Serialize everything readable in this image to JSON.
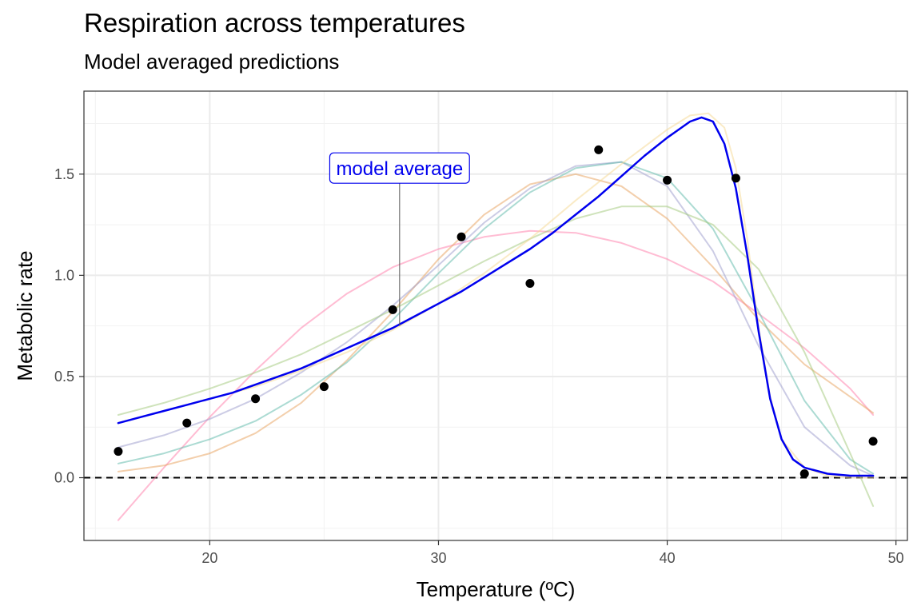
{
  "chart_data": {
    "type": "line",
    "title": "Respiration across temperatures",
    "subtitle": "Model averaged predictions",
    "xlabel": "Temperature (ºC)",
    "ylabel": "Metabolic rate",
    "xlim": [
      14.5,
      50.5
    ],
    "ylim": [
      -0.31,
      1.91
    ],
    "x_ticks": [
      20,
      30,
      40,
      50
    ],
    "y_ticks": [
      0.0,
      0.5,
      1.0,
      1.5
    ],
    "x_tick_labels": [
      "20",
      "30",
      "40",
      "50"
    ],
    "y_tick_labels": [
      "0.0",
      "0.5",
      "1.0",
      "1.5"
    ],
    "grid": true,
    "reference_line": {
      "y": 0,
      "style": "dashed",
      "color": "#000000"
    },
    "annotation": {
      "text": "model average",
      "x": 28.3,
      "y": 0.75,
      "label_y": 1.53,
      "color": "#0000ee"
    },
    "points": {
      "color": "#000000",
      "x": [
        16,
        19,
        22,
        25,
        28,
        31,
        34,
        37,
        40,
        43,
        46,
        49
      ],
      "y": [
        0.13,
        0.27,
        0.39,
        0.45,
        0.83,
        1.19,
        0.96,
        1.62,
        1.47,
        1.48,
        0.02,
        0.18
      ]
    },
    "series": [
      {
        "color": "#ff7aa8",
        "x": [
          16,
          18,
          20,
          22,
          24,
          26,
          28,
          30,
          32,
          34,
          36,
          38,
          40,
          42,
          44,
          46,
          48,
          49
        ],
        "y": [
          -0.21,
          0.05,
          0.3,
          0.53,
          0.74,
          0.91,
          1.04,
          1.13,
          1.19,
          1.22,
          1.21,
          1.16,
          1.08,
          0.97,
          0.81,
          0.64,
          0.44,
          0.31
        ]
      },
      {
        "color": "#e8a05a",
        "x": [
          16,
          18,
          20,
          22,
          24,
          26,
          28,
          30,
          32,
          34,
          36,
          38,
          40,
          42,
          44,
          46,
          48,
          49
        ],
        "y": [
          0.03,
          0.06,
          0.12,
          0.22,
          0.37,
          0.58,
          0.82,
          1.08,
          1.3,
          1.45,
          1.5,
          1.44,
          1.28,
          1.04,
          0.78,
          0.56,
          0.4,
          0.32
        ]
      },
      {
        "color": "#9999cc",
        "x": [
          16,
          18,
          20,
          22,
          24,
          26,
          28,
          30,
          32,
          34,
          36,
          38,
          40,
          42,
          44,
          46,
          48,
          49
        ],
        "y": [
          0.15,
          0.21,
          0.29,
          0.39,
          0.52,
          0.67,
          0.85,
          1.05,
          1.26,
          1.43,
          1.54,
          1.56,
          1.44,
          1.12,
          0.65,
          0.25,
          0.06,
          0.01
        ]
      },
      {
        "color": "#5ab8a8",
        "x": [
          16,
          18,
          20,
          22,
          24,
          26,
          28,
          30,
          32,
          34,
          36,
          38,
          40,
          42,
          44,
          46,
          48,
          49
        ],
        "y": [
          0.07,
          0.12,
          0.19,
          0.28,
          0.41,
          0.57,
          0.78,
          1.01,
          1.23,
          1.41,
          1.53,
          1.56,
          1.48,
          1.23,
          0.82,
          0.38,
          0.09,
          0.02
        ]
      },
      {
        "color": "#a0c878",
        "x": [
          16,
          18,
          20,
          22,
          24,
          26,
          28,
          30,
          32,
          34,
          36,
          38,
          40,
          42,
          44,
          46,
          48,
          49
        ],
        "y": [
          0.31,
          0.37,
          0.44,
          0.52,
          0.61,
          0.72,
          0.83,
          0.95,
          1.07,
          1.18,
          1.28,
          1.34,
          1.34,
          1.25,
          1.03,
          0.62,
          0.12,
          -0.14
        ]
      },
      {
        "color": "#f5d890",
        "x": [
          16,
          18,
          20,
          22,
          24,
          26,
          28,
          30,
          32,
          34,
          36,
          38,
          40,
          41,
          41.8,
          42.5,
          43,
          43.5,
          44,
          44.5,
          45,
          46,
          47,
          48,
          49
        ],
        "y": [
          0.27,
          0.33,
          0.39,
          0.45,
          0.53,
          0.62,
          0.73,
          0.86,
          1.01,
          1.18,
          1.37,
          1.55,
          1.72,
          1.79,
          1.8,
          1.73,
          1.53,
          1.18,
          0.74,
          0.4,
          0.19,
          0.05,
          0.01,
          0.0,
          0.0
        ]
      },
      {
        "name": "model average",
        "color": "#0000ee",
        "x": [
          16,
          17,
          18,
          19,
          20,
          21,
          22,
          23,
          24,
          25,
          26,
          27,
          28,
          29,
          30,
          31,
          32,
          33,
          34,
          35,
          36,
          37,
          38,
          39,
          40,
          40.5,
          41,
          41.5,
          42,
          42.5,
          43,
          43.5,
          44,
          44.5,
          45,
          45.5,
          46,
          47,
          48,
          49
        ],
        "y": [
          0.27,
          0.3,
          0.33,
          0.36,
          0.39,
          0.42,
          0.46,
          0.5,
          0.54,
          0.59,
          0.64,
          0.69,
          0.74,
          0.8,
          0.86,
          0.92,
          0.99,
          1.06,
          1.13,
          1.21,
          1.3,
          1.39,
          1.49,
          1.59,
          1.68,
          1.72,
          1.76,
          1.78,
          1.76,
          1.65,
          1.43,
          1.1,
          0.72,
          0.39,
          0.19,
          0.09,
          0.05,
          0.02,
          0.01,
          0.01
        ]
      }
    ]
  }
}
